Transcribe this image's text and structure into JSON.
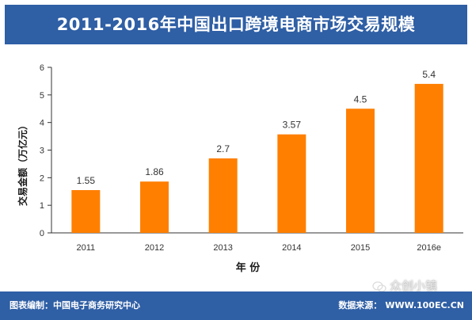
{
  "header": {
    "title": "2011-2016年中国出口跨境电商市场交易规模"
  },
  "colors": {
    "title_bar": "#2f5fa5",
    "bar_fill": "#ff7f00",
    "footer_bar": "#2f5fa5"
  },
  "chart_data": {
    "type": "bar",
    "title": "2011-2016年中国出口跨境电商市场交易规模",
    "xlabel": "年 份",
    "ylabel": "交易金额（万亿元）",
    "categories": [
      "2011",
      "2012",
      "2013",
      "2014",
      "2015",
      "2016e"
    ],
    "values": [
      1.55,
      1.86,
      2.7,
      3.57,
      4.5,
      5.4
    ],
    "data_labels": [
      "1.55",
      "1.86",
      "2.7",
      "3.57",
      "4.5",
      "5.4"
    ],
    "ylim": [
      0,
      6
    ],
    "yticks": [
      "0",
      "1",
      "2",
      "3",
      "4",
      "5",
      "6"
    ],
    "grid": false,
    "legend": "none"
  },
  "footer": {
    "left_text": "图表编制：中国电子商务研究中心",
    "right_label": "数据来源：",
    "right_value": "WWW.100EC.CN"
  },
  "watermark": {
    "icon": "wechat-icon",
    "text": "众创小镇"
  }
}
